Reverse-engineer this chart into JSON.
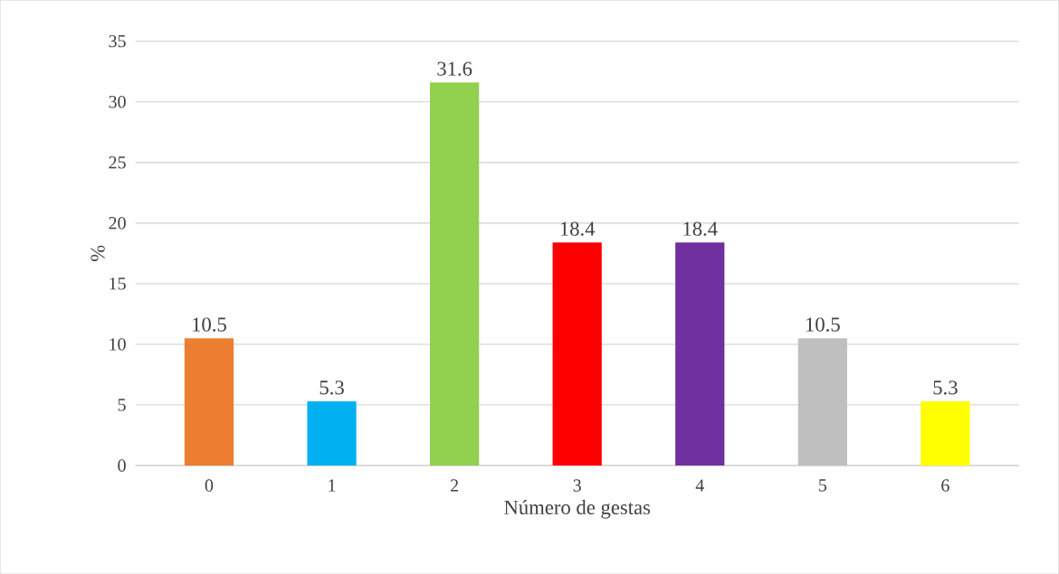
{
  "chart_data": {
    "type": "bar",
    "xlabel": "Número de gestas",
    "ylabel": "%",
    "categories": [
      "0",
      "1",
      "2",
      "3",
      "4",
      "5",
      "6"
    ],
    "values": [
      10.5,
      5.3,
      31.6,
      18.4,
      18.4,
      10.5,
      5.3
    ],
    "colors": [
      "#ed7d31",
      "#00b0f0",
      "#92d050",
      "#ff0000",
      "#7030a0",
      "#bfbfbf",
      "#ffff00"
    ],
    "ylim": [
      0,
      35
    ],
    "yticks": [
      0,
      5,
      10,
      15,
      20,
      25,
      30,
      35
    ],
    "grid": "y",
    "data_labels": true
  }
}
